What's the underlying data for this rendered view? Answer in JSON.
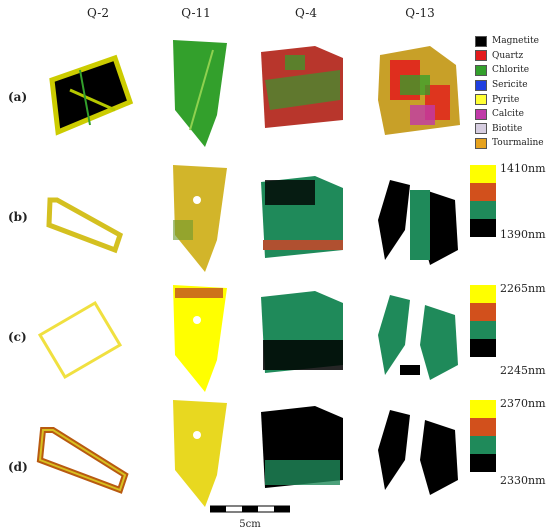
{
  "columns": [
    "Q-2",
    "Q-11",
    "Q-4",
    "Q-13"
  ],
  "rows": [
    "(a)",
    "(b)",
    "(c)",
    "(d)"
  ],
  "legend": [
    {
      "label": "Magnetite",
      "color": "#000000"
    },
    {
      "label": "Quartz",
      "color": "#e31a1c"
    },
    {
      "label": "Chlorite",
      "color": "#33a02c"
    },
    {
      "label": "Sericite",
      "color": "#1f3fe0"
    },
    {
      "label": "Pyrite",
      "color": "#ffff33"
    },
    {
      "label": "Calcite",
      "color": "#c03aa8"
    },
    {
      "label": "Biotite",
      "color": "#d6cde0"
    },
    {
      "label": "Tourmaline",
      "color": "#e6a21e"
    }
  ],
  "scalebars": [
    {
      "top": "1410nm",
      "bottom": "1390nm"
    },
    {
      "top": "2265nm",
      "bottom": "2245nm"
    },
    {
      "top": "2370nm",
      "bottom": "2330nm"
    }
  ],
  "scale_colors": [
    "#ffff00",
    "#d2501c",
    "#1f8a5a",
    "#000000"
  ],
  "bottom_scale_label": "5cm"
}
